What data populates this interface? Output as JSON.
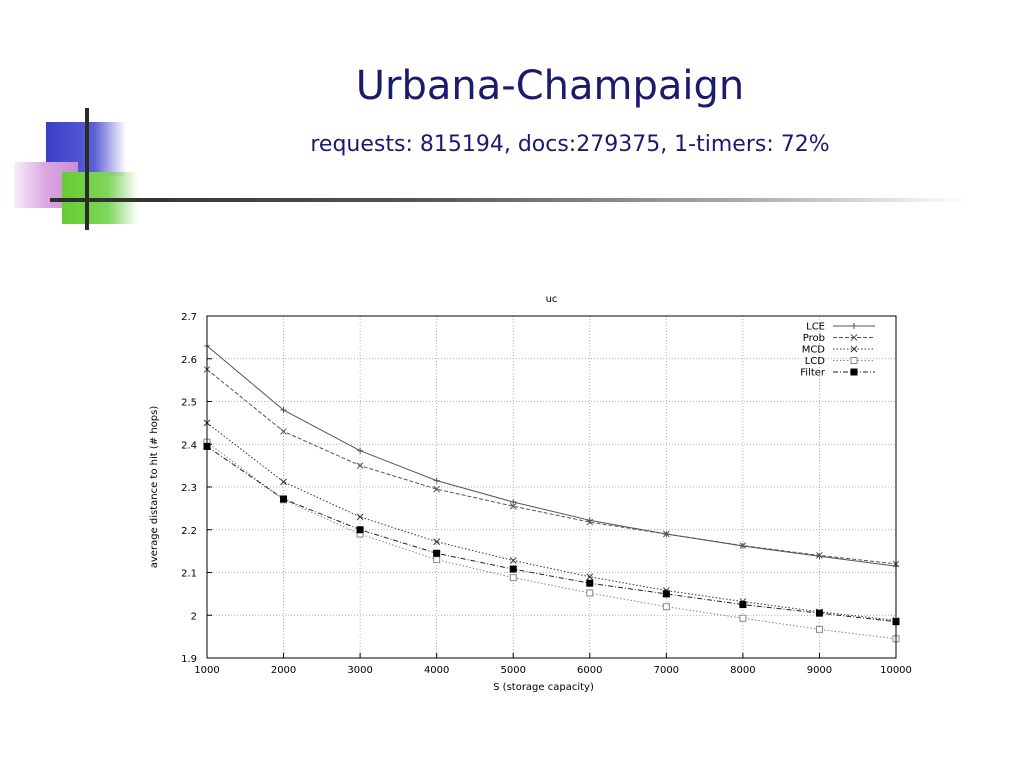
{
  "slide": {
    "title": "Urbana-Champaign",
    "subtitle": "requests: 815194, docs:279375, 1-timers: 72%"
  },
  "chart_data": {
    "type": "line",
    "title": "uc",
    "xlabel": "S (storage capacity)",
    "ylabel": "average distance to hit (# hops)",
    "x": [
      1000,
      2000,
      3000,
      4000,
      5000,
      6000,
      7000,
      8000,
      9000,
      10000
    ],
    "xlim": [
      1000,
      10000
    ],
    "ylim": [
      1.9,
      2.7
    ],
    "xticks": [
      1000,
      2000,
      3000,
      4000,
      5000,
      6000,
      7000,
      8000,
      9000,
      10000
    ],
    "yticks": [
      1.9,
      2,
      2.1,
      2.2,
      2.3,
      2.4,
      2.5,
      2.6,
      2.7
    ],
    "ytick_labels": [
      "1.9",
      "2",
      "2.1",
      "2.2",
      "2.3",
      "2.4",
      "2.5",
      "2.6",
      "2.7"
    ],
    "grid": true,
    "legend_position": "top-right",
    "series": [
      {
        "name": "LCE",
        "marker": "plus",
        "dash": "solid",
        "color": "#555555",
        "values": [
          2.63,
          2.48,
          2.385,
          2.315,
          2.265,
          2.222,
          2.19,
          2.162,
          2.138,
          2.115
        ]
      },
      {
        "name": "Prob",
        "marker": "x",
        "dash": "dashed",
        "color": "#555555",
        "values": [
          2.575,
          2.43,
          2.35,
          2.295,
          2.255,
          2.218,
          2.19,
          2.163,
          2.14,
          2.12
        ]
      },
      {
        "name": "MCD",
        "marker": "x",
        "dash": "dotted",
        "color": "#333333",
        "values": [
          2.45,
          2.312,
          2.23,
          2.172,
          2.128,
          2.09,
          2.058,
          2.032,
          2.008,
          1.988
        ]
      },
      {
        "name": "LCD",
        "marker": "open-square",
        "dash": "dotted",
        "color": "#888888",
        "values": [
          2.405,
          2.27,
          2.19,
          2.13,
          2.088,
          2.052,
          2.02,
          1.993,
          1.967,
          1.945
        ]
      },
      {
        "name": "Filter",
        "marker": "filled-square",
        "dash": "dashdot",
        "color": "#222222",
        "values": [
          2.395,
          2.272,
          2.2,
          2.145,
          2.108,
          2.075,
          2.05,
          2.025,
          2.005,
          1.985
        ]
      }
    ]
  }
}
